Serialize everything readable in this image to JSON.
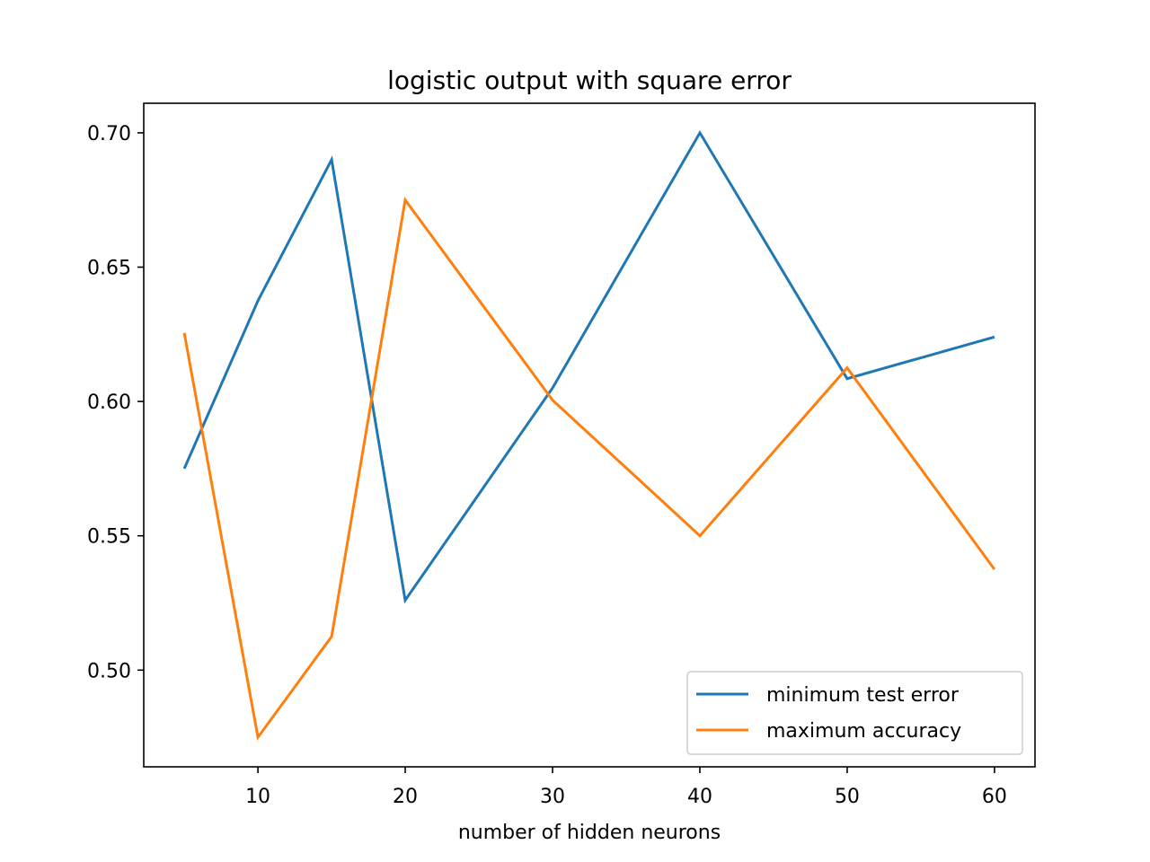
{
  "chart_data": {
    "type": "line",
    "title": "logistic output with square error",
    "xlabel": "number of hidden neurons",
    "ylabel": "",
    "xlim": [
      2.25,
      62.75
    ],
    "ylim": [
      0.464,
      0.711
    ],
    "xticks": [
      10,
      20,
      30,
      40,
      50,
      60
    ],
    "xtick_labels": [
      "10",
      "20",
      "30",
      "40",
      "50",
      "60"
    ],
    "yticks": [
      0.5,
      0.55,
      0.6,
      0.65,
      0.7
    ],
    "ytick_labels": [
      "0.50",
      "0.55",
      "0.60",
      "0.65",
      "0.70"
    ],
    "grid": false,
    "legend_position": "lower-right",
    "x": [
      5,
      10,
      15,
      20,
      30,
      40,
      50,
      60
    ],
    "series": [
      {
        "name": "minimum test error",
        "color": "#1f77b4",
        "values": [
          0.575,
          0.6375,
          0.69,
          0.526,
          0.605,
          0.7,
          0.6085,
          0.624
        ]
      },
      {
        "name": "maximum accuracy",
        "color": "#ff7f0e",
        "values": [
          0.6255,
          0.475,
          0.5125,
          0.675,
          0.6005,
          0.55,
          0.6125,
          0.5375
        ]
      }
    ]
  }
}
